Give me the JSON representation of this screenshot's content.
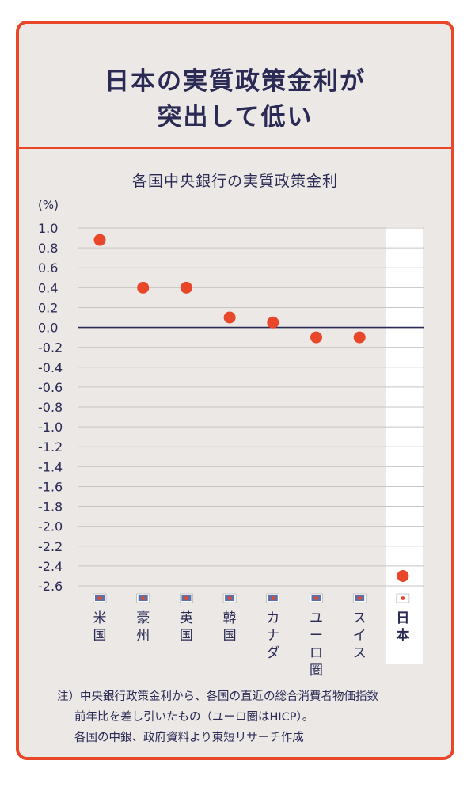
{
  "header": {
    "title_line1": "日本の実質政策金利が",
    "title_line2": "突出して低い"
  },
  "chart_data": {
    "type": "scatter",
    "title": "各国中央銀行の実質政策金利",
    "ylabel": "(%)",
    "ylim": [
      -2.6,
      1.0
    ],
    "yticks": [
      "1.0",
      "0.8",
      "0.6",
      "0.4",
      "0.2",
      "0.0",
      "-0.2",
      "-0.4",
      "-0.6",
      "-0.8",
      "-1.0",
      "-1.2",
      "-1.4",
      "-1.6",
      "-1.8",
      "-2.0",
      "-2.2",
      "-2.4",
      "-2.6"
    ],
    "grid": true,
    "categories": [
      "米国",
      "豪州",
      "英国",
      "韓国",
      "カナダ",
      "ユーロ圏",
      "スイス",
      "日本"
    ],
    "flags": [
      "us-flag-icon",
      "au-flag-icon",
      "gb-flag-icon",
      "kr-flag-icon",
      "ca-flag-icon",
      "eu-flag-icon",
      "ch-flag-icon",
      "jp-flag-icon"
    ],
    "values": [
      0.88,
      0.4,
      0.4,
      0.1,
      0.05,
      -0.1,
      -0.1,
      -2.5
    ],
    "highlight": "日本",
    "colors": {
      "point": "#e8472a",
      "text": "#2b2a55",
      "grid": "#c8c5c2",
      "zero": "#2b2a55",
      "highlight_bg": "#ffffff"
    }
  },
  "footnote": {
    "line1": "注）中央銀行政策金利から、各国の直近の総合消費者物価指数",
    "line2": "前年比を差し引いたもの（ユーロ圏はHICP）。",
    "line3": "各国の中銀、政府資料より東短リサーチ作成"
  }
}
